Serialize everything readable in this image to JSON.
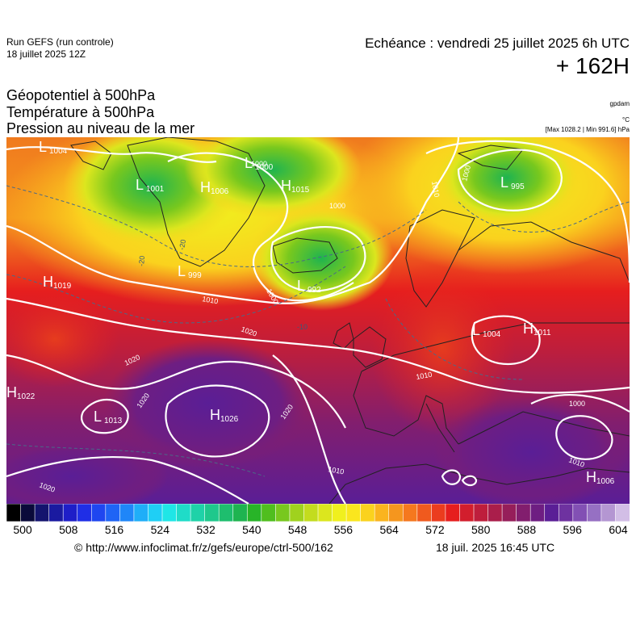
{
  "header": {
    "run_title": "Run GEFS (run controle)",
    "run_date": "18 juillet 2025 12Z",
    "valid_label": "Echéance : vendredi 25 juillet 2025 6h UTC",
    "lead_time": "+ 162H"
  },
  "parameters": [
    "Géopotentiel à 500hPa",
    "Température à 500hPa",
    "Pression au niveau de la mer"
  ],
  "units": {
    "geopotential": "gpdam",
    "temperature": "°C",
    "pressure": "[Max 1028.2 | Min 991.6] hPa"
  },
  "map": {
    "pressure_centers": [
      {
        "type": "L",
        "value": "1004"
      },
      {
        "type": "L",
        "value": "1001"
      },
      {
        "type": "H",
        "value": "1006"
      },
      {
        "type": "L",
        "value": "1000"
      },
      {
        "type": "H",
        "value": "1015"
      },
      {
        "type": "L",
        "value": "995"
      },
      {
        "type": "L",
        "value": "999"
      },
      {
        "type": "L",
        "value": "992"
      },
      {
        "type": "H",
        "value": "1019"
      },
      {
        "type": "L",
        "value": "1004"
      },
      {
        "type": "H",
        "value": "1011"
      },
      {
        "type": "H",
        "value": "1022"
      },
      {
        "type": "L",
        "value": "1013"
      },
      {
        "type": "H",
        "value": "1026"
      },
      {
        "type": "H",
        "value": "1006"
      }
    ],
    "isobar_labels": [
      "1000",
      "1000",
      "1000",
      "1000",
      "1010",
      "1010",
      "1010",
      "1010",
      "1020",
      "1020",
      "1020",
      "1020",
      "1020",
      "1000",
      "1010"
    ],
    "temperature_labels": [
      "-20",
      "-20",
      "-10"
    ]
  },
  "colorbar": {
    "colors": [
      "#000000",
      "#0a0a3a",
      "#14146e",
      "#1a1aa0",
      "#1e1ec8",
      "#1f2ee6",
      "#1f46f0",
      "#1f64f5",
      "#1f86f8",
      "#1faef8",
      "#1fcff5",
      "#1fe6e6",
      "#1fdcc8",
      "#1ed2a8",
      "#1ec88c",
      "#1ebe6e",
      "#1eb450",
      "#28b428",
      "#50be1e",
      "#78c81e",
      "#a0d21e",
      "#c3dc1e",
      "#dce61e",
      "#f0f01e",
      "#fae61e",
      "#fad21e",
      "#fab41e",
      "#f5961e",
      "#f5781e",
      "#f05a1e",
      "#eb3c1e",
      "#e61e1e",
      "#d21e2d",
      "#be1e3c",
      "#aa1e4b",
      "#961e5a",
      "#821e6e",
      "#6e1e82",
      "#5a1e96",
      "#6e32a0",
      "#8250b4",
      "#9670c3",
      "#b496d2",
      "#d2bee6"
    ],
    "tick_labels": [
      "500",
      "508",
      "516",
      "524",
      "532",
      "540",
      "548",
      "556",
      "564",
      "572",
      "580",
      "588",
      "596",
      "604"
    ]
  },
  "footer": {
    "copyright": "© http://www.infoclimat.fr/z/gefs/europe/ctrl-500/162",
    "generated": "18 juil. 2025 16:45 UTC"
  }
}
